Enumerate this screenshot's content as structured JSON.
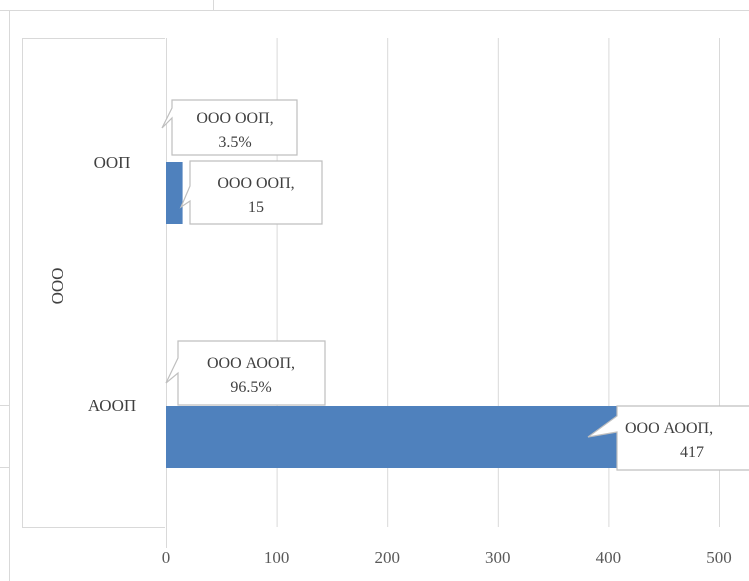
{
  "chart_data": {
    "type": "bar",
    "orientation": "horizontal",
    "group_label": "ООО",
    "categories": [
      "ООП",
      "АООП"
    ],
    "values": [
      15,
      417
    ],
    "percents": [
      "3.5%",
      "96.5%"
    ],
    "value_callouts": [
      {
        "line1": "ООО ООП,",
        "line2": "15"
      },
      {
        "line1": "ООО АООП,",
        "line2": "417"
      }
    ],
    "percent_callouts": [
      {
        "line1": "ООО ООП,",
        "line2": "3.5%"
      },
      {
        "line1": "ООО АООП,",
        "line2": "96.5%"
      }
    ],
    "x_ticks": [
      0,
      100,
      200,
      300,
      400,
      500
    ],
    "x_tick_labels": [
      "0",
      "100",
      "200",
      "300",
      "400",
      "500"
    ],
    "xlim": [
      0,
      500
    ],
    "grid": true,
    "bar_color": "#4f81bd",
    "title": "",
    "xlabel": "",
    "ylabel": ""
  }
}
